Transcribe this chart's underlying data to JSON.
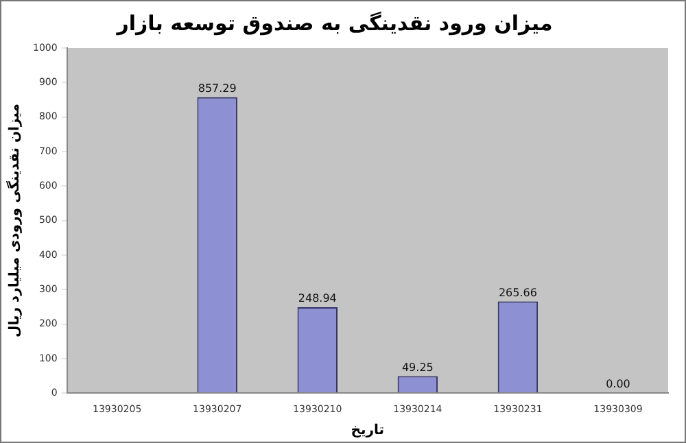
{
  "chart_data": {
    "type": "bar",
    "title": "میزان ورود نقدینگی به صندوق توسعه بازار",
    "xlabel": "تاریخ",
    "ylabel": "میزان نقدینگی ورودی میلیارد ریال",
    "categories": [
      "13930205",
      "13930207",
      "13930210",
      "13930214",
      "13930231",
      "13930309"
    ],
    "values": [
      null,
      857.29,
      248.94,
      49.25,
      265.66,
      0
    ],
    "value_labels": [
      null,
      "857.29",
      "248.94",
      "49.25",
      "265.66",
      "0.00"
    ],
    "color": "#8e90d4",
    "ylim": [
      0,
      1000
    ],
    "yticks": [
      0,
      100,
      200,
      300,
      400,
      500,
      600,
      700,
      800,
      900,
      1000
    ],
    "grid": false,
    "legend": false
  }
}
